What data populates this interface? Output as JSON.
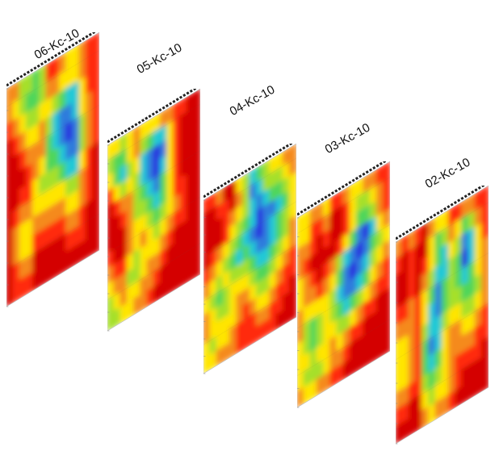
{
  "chart_data": {
    "type": "heatmap",
    "colorscale": [
      "#d40000",
      "#ff2a0a",
      "#f58a1f",
      "#ffe500",
      "#a6e02b",
      "#4fd65a",
      "#22c9d6",
      "#2f7bdc",
      "#2a2adf",
      "#7a22d0"
    ],
    "panels": [
      {
        "title": "06-Kc-10",
        "grid": [
          [
            2,
            2,
            4,
            4,
            5,
            4,
            1,
            1,
            2,
            3,
            3,
            2,
            1,
            1
          ],
          [
            2,
            3,
            4,
            5,
            5,
            4,
            2,
            2,
            3,
            3,
            3,
            2,
            1,
            1
          ],
          [
            1,
            2,
            3,
            4,
            4,
            3,
            3,
            4,
            5,
            6,
            6,
            3,
            1,
            1
          ],
          [
            0,
            1,
            2,
            3,
            3,
            2,
            4,
            6,
            7,
            7,
            6,
            3,
            2,
            1
          ],
          [
            0,
            0,
            1,
            2,
            2,
            2,
            5,
            6,
            7,
            8,
            7,
            4,
            2,
            1
          ],
          [
            0,
            0,
            0,
            1,
            2,
            3,
            5,
            5,
            6,
            7,
            7,
            4,
            2,
            1
          ],
          [
            0,
            0,
            1,
            1,
            3,
            4,
            4,
            4,
            5,
            6,
            6,
            3,
            1,
            0
          ],
          [
            0,
            1,
            2,
            2,
            3,
            3,
            3,
            3,
            3,
            4,
            4,
            2,
            1,
            0
          ],
          [
            0,
            2,
            3,
            3,
            2,
            2,
            2,
            2,
            2,
            3,
            3,
            2,
            1,
            0
          ],
          [
            0,
            2,
            3,
            3,
            1,
            1,
            1,
            1,
            1,
            2,
            2,
            1,
            0,
            0
          ],
          [
            0,
            1,
            2,
            2,
            0,
            0,
            0,
            0,
            0,
            1,
            1,
            1,
            0,
            0
          ],
          [
            0,
            1,
            1,
            1,
            0,
            0,
            0,
            0,
            0,
            0,
            0,
            0,
            0,
            0
          ]
        ]
      },
      {
        "title": "05-Kc-10",
        "grid": [
          [
            3,
            3,
            4,
            3,
            2,
            3,
            3,
            3,
            2,
            2,
            1,
            1,
            0,
            0
          ],
          [
            4,
            5,
            5,
            3,
            2,
            4,
            5,
            6,
            6,
            3,
            1,
            0,
            0,
            0
          ],
          [
            3,
            5,
            6,
            4,
            3,
            6,
            7,
            8,
            7,
            3,
            1,
            0,
            0,
            0
          ],
          [
            1,
            3,
            4,
            3,
            4,
            6,
            7,
            8,
            6,
            3,
            1,
            0,
            0,
            0
          ],
          [
            0,
            1,
            2,
            2,
            4,
            5,
            6,
            7,
            5,
            3,
            1,
            0,
            0,
            0
          ],
          [
            0,
            0,
            1,
            2,
            4,
            4,
            5,
            6,
            5,
            3,
            1,
            1,
            0,
            0
          ],
          [
            0,
            0,
            0,
            2,
            3,
            3,
            4,
            5,
            4,
            3,
            2,
            1,
            0,
            0
          ],
          [
            1,
            0,
            0,
            2,
            3,
            2,
            3,
            4,
            3,
            2,
            1,
            1,
            0,
            0
          ],
          [
            2,
            1,
            1,
            3,
            4,
            3,
            3,
            3,
            2,
            1,
            0,
            0,
            0,
            0
          ],
          [
            3,
            2,
            2,
            4,
            4,
            3,
            2,
            2,
            1,
            0,
            0,
            0,
            0,
            0
          ],
          [
            4,
            3,
            2,
            3,
            3,
            2,
            2,
            1,
            0,
            0,
            0,
            0,
            0,
            0
          ],
          [
            4,
            4,
            3,
            3,
            2,
            2,
            1,
            0,
            0,
            0,
            0,
            0,
            0,
            0
          ]
        ]
      },
      {
        "title": "04-Kc-10",
        "grid": [
          [
            1,
            1,
            2,
            0,
            0,
            3,
            4,
            6,
            5,
            4,
            3,
            3,
            2,
            2
          ],
          [
            0,
            0,
            1,
            1,
            0,
            2,
            4,
            7,
            6,
            4,
            4,
            4,
            3,
            2
          ],
          [
            0,
            0,
            0,
            1,
            2,
            3,
            4,
            6,
            7,
            6,
            5,
            5,
            4,
            3
          ],
          [
            0,
            0,
            0,
            1,
            3,
            4,
            5,
            6,
            8,
            7,
            7,
            6,
            5,
            3
          ],
          [
            0,
            1,
            2,
            3,
            4,
            5,
            6,
            7,
            8,
            7,
            6,
            5,
            4,
            3
          ],
          [
            1,
            2,
            3,
            4,
            5,
            6,
            5,
            6,
            7,
            7,
            6,
            5,
            4,
            2
          ],
          [
            2,
            3,
            4,
            3,
            4,
            4,
            4,
            5,
            6,
            6,
            5,
            4,
            3,
            2
          ],
          [
            3,
            4,
            5,
            4,
            3,
            3,
            3,
            4,
            5,
            5,
            4,
            3,
            2,
            1
          ],
          [
            2,
            3,
            4,
            4,
            3,
            2,
            2,
            3,
            4,
            4,
            3,
            2,
            1,
            1
          ],
          [
            2,
            3,
            3,
            3,
            3,
            2,
            1,
            2,
            3,
            3,
            2,
            1,
            1,
            0
          ],
          [
            3,
            4,
            3,
            3,
            2,
            1,
            1,
            1,
            2,
            2,
            1,
            1,
            0,
            0
          ],
          [
            3,
            3,
            2,
            2,
            2,
            1,
            1,
            1,
            1,
            1,
            1,
            0,
            0,
            0
          ]
        ]
      },
      {
        "title": "03-Kc-10",
        "grid": [
          [
            3,
            3,
            2,
            2,
            3,
            1,
            1,
            2,
            3,
            3,
            2,
            2,
            1,
            1
          ],
          [
            3,
            3,
            1,
            1,
            2,
            0,
            0,
            1,
            3,
            4,
            4,
            3,
            2,
            1
          ],
          [
            2,
            2,
            1,
            0,
            1,
            0,
            0,
            1,
            3,
            5,
            5,
            4,
            2,
            1
          ],
          [
            2,
            1,
            0,
            0,
            0,
            0,
            1,
            3,
            5,
            7,
            8,
            6,
            3,
            2
          ],
          [
            3,
            2,
            1,
            0,
            1,
            2,
            4,
            6,
            7,
            8,
            7,
            5,
            4,
            3
          ],
          [
            3,
            2,
            2,
            1,
            2,
            3,
            5,
            7,
            8,
            7,
            6,
            4,
            3,
            2
          ],
          [
            2,
            3,
            3,
            3,
            3,
            4,
            6,
            7,
            7,
            6,
            5,
            3,
            2,
            1
          ],
          [
            2,
            4,
            5,
            4,
            3,
            4,
            5,
            6,
            5,
            4,
            3,
            2,
            1,
            1
          ],
          [
            3,
            4,
            5,
            4,
            3,
            3,
            4,
            4,
            3,
            2,
            1,
            1,
            0,
            0
          ],
          [
            3,
            3,
            4,
            3,
            3,
            2,
            3,
            2,
            1,
            1,
            0,
            0,
            0,
            0
          ],
          [
            3,
            4,
            4,
            4,
            3,
            2,
            2,
            1,
            0,
            0,
            0,
            0,
            0,
            0
          ],
          [
            2,
            3,
            3,
            2,
            2,
            1,
            1,
            0,
            0,
            0,
            0,
            0,
            0,
            0
          ]
        ]
      },
      {
        "title": "02-Kc-10",
        "grid": [
          [
            2,
            1,
            2,
            1,
            0,
            2,
            3,
            3,
            1,
            1,
            2,
            2,
            1,
            1
          ],
          [
            1,
            0,
            1,
            0,
            0,
            3,
            5,
            4,
            2,
            3,
            5,
            4,
            2,
            1
          ],
          [
            0,
            0,
            1,
            0,
            1,
            3,
            5,
            6,
            3,
            4,
            7,
            6,
            3,
            1
          ],
          [
            0,
            0,
            1,
            0,
            2,
            4,
            6,
            6,
            4,
            5,
            8,
            6,
            3,
            2
          ],
          [
            1,
            1,
            2,
            1,
            3,
            5,
            7,
            5,
            4,
            5,
            6,
            5,
            3,
            2
          ],
          [
            2,
            2,
            2,
            1,
            3,
            6,
            7,
            5,
            4,
            4,
            5,
            5,
            4,
            2
          ],
          [
            3,
            3,
            2,
            1,
            4,
            6,
            6,
            4,
            3,
            3,
            4,
            4,
            3,
            2
          ],
          [
            3,
            3,
            2,
            1,
            5,
            7,
            6,
            3,
            2,
            2,
            3,
            3,
            2,
            1
          ],
          [
            3,
            3,
            2,
            1,
            5,
            6,
            5,
            3,
            2,
            2,
            2,
            2,
            1,
            1
          ],
          [
            2,
            2,
            1,
            1,
            4,
            5,
            4,
            3,
            2,
            1,
            1,
            1,
            1,
            0
          ],
          [
            1,
            1,
            0,
            0,
            3,
            4,
            3,
            3,
            2,
            1,
            0,
            0,
            0,
            0
          ],
          [
            0,
            0,
            0,
            0,
            2,
            3,
            2,
            2,
            1,
            0,
            0,
            0,
            0,
            0
          ]
        ]
      }
    ]
  }
}
